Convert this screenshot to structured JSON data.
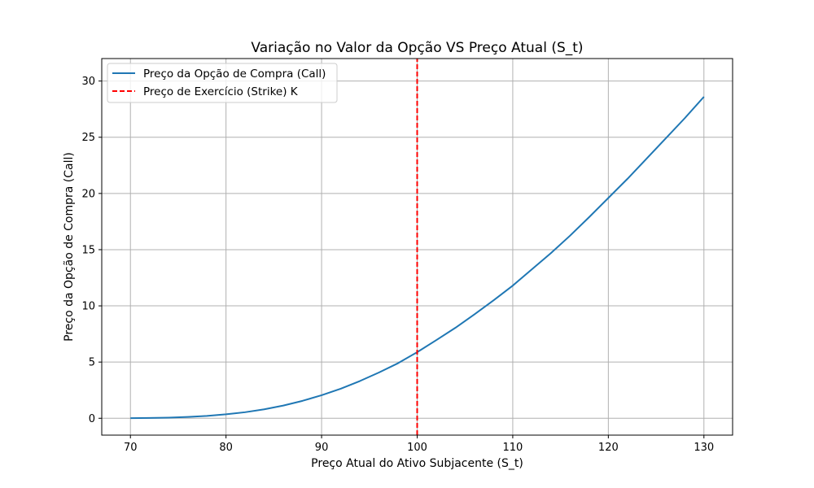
{
  "chart_data": {
    "type": "line",
    "title": "Variação no Valor da Opção VS Preço Atual (S_t)",
    "xlabel": "Preço Atual do Ativo Subjacente (S_t)",
    "ylabel": "Preço da Opção de Compra (Call)",
    "xlim": [
      67,
      133
    ],
    "ylim": [
      -1.5,
      32
    ],
    "xticks": [
      70,
      80,
      90,
      100,
      110,
      120,
      130
    ],
    "yticks": [
      0,
      5,
      10,
      15,
      20,
      25,
      30
    ],
    "grid": true,
    "legend_position": "top-left",
    "series": [
      {
        "name": "Preço da Opção de Compra (Call)",
        "color": "#1f77b4",
        "style": "solid",
        "x": [
          70,
          72,
          74,
          76,
          78,
          80,
          82,
          84,
          86,
          88,
          90,
          92,
          94,
          96,
          98,
          100,
          102,
          104,
          106,
          108,
          110,
          112,
          114,
          116,
          118,
          120,
          122,
          124,
          126,
          128,
          130
        ],
        "y": [
          0.01,
          0.03,
          0.06,
          0.12,
          0.21,
          0.35,
          0.54,
          0.8,
          1.13,
          1.55,
          2.05,
          2.63,
          3.31,
          4.07,
          4.9,
          5.88,
          6.95,
          8.05,
          9.25,
          10.5,
          11.8,
          13.25,
          14.7,
          16.25,
          17.9,
          19.6,
          21.3,
          23.1,
          24.9,
          26.7,
          28.6
        ]
      },
      {
        "name": "Preço de Exercício (Strike) K",
        "color": "#ff0000",
        "style": "dashed",
        "x": [
          100,
          100
        ],
        "y": [
          -1.5,
          32
        ]
      }
    ]
  }
}
